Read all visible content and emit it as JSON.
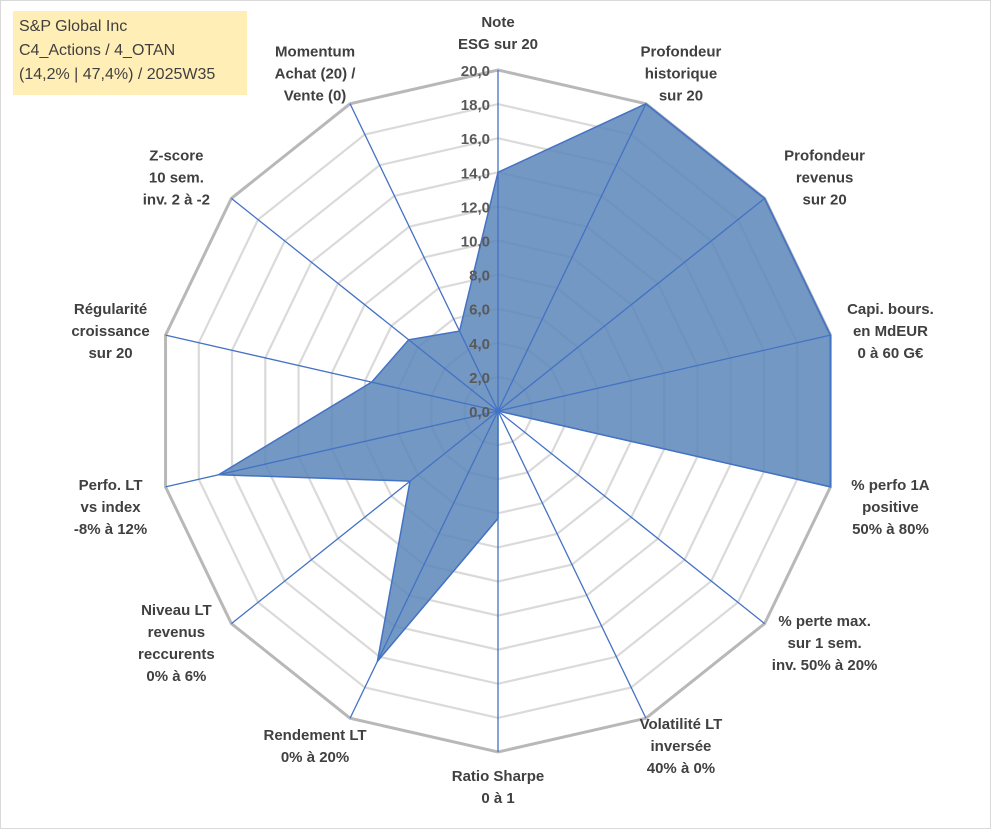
{
  "info_box": {
    "line1": "S&P Global Inc",
    "line2": "C4_Actions / 4_OTAN",
    "line3": "(14,2% | 47,4%) / 2025W35"
  },
  "colors": {
    "fill": "#5b86b8",
    "line": "#4472c4",
    "grid": "#bfbfbf",
    "info_box_bg": "#ffeeb5"
  },
  "chart_data": {
    "type": "radar",
    "rmin": 0,
    "rmax": 20,
    "tick_step": 2,
    "tick_labels": [
      "0,0",
      "2,0",
      "4,0",
      "6,0",
      "8,0",
      "10,0",
      "12,0",
      "14,0",
      "16,0",
      "18,0",
      "20,0"
    ],
    "categories": [
      [
        "Note",
        "ESG sur 20"
      ],
      [
        "Profondeur",
        "historique",
        "sur 20"
      ],
      [
        "Profondeur",
        "revenus",
        "sur 20"
      ],
      [
        "Capi. bours.",
        "en MdEUR",
        "0 à 60 G€"
      ],
      [
        "% perfo 1A",
        "positive",
        "50% à 80%"
      ],
      [
        "% perte max.",
        "sur 1 sem.",
        "inv. 50% à 20%"
      ],
      [
        "Volatilité LT",
        "inversée",
        "40% à 0%"
      ],
      [
        "Ratio Sharpe",
        "0 à 1"
      ],
      [
        "Rendement LT",
        "0% à 20%"
      ],
      [
        "Niveau LT",
        "revenus",
        "reccurents",
        "0% à 6%"
      ],
      [
        "Perfo. LT",
        "vs index",
        "-8% à 12%"
      ],
      [
        "Régularité",
        "croissance",
        "sur 20"
      ],
      [
        "Z-score",
        "10 sem.",
        "inv. 2 à -2"
      ],
      [
        "Momentum",
        "Achat (20) /",
        "Vente (0)"
      ]
    ],
    "series": [
      {
        "values": [
          14,
          20,
          20,
          20,
          20,
          0,
          0,
          6.3,
          16.3,
          6.6,
          16.8,
          7.6,
          6.7,
          5.2
        ]
      }
    ]
  }
}
